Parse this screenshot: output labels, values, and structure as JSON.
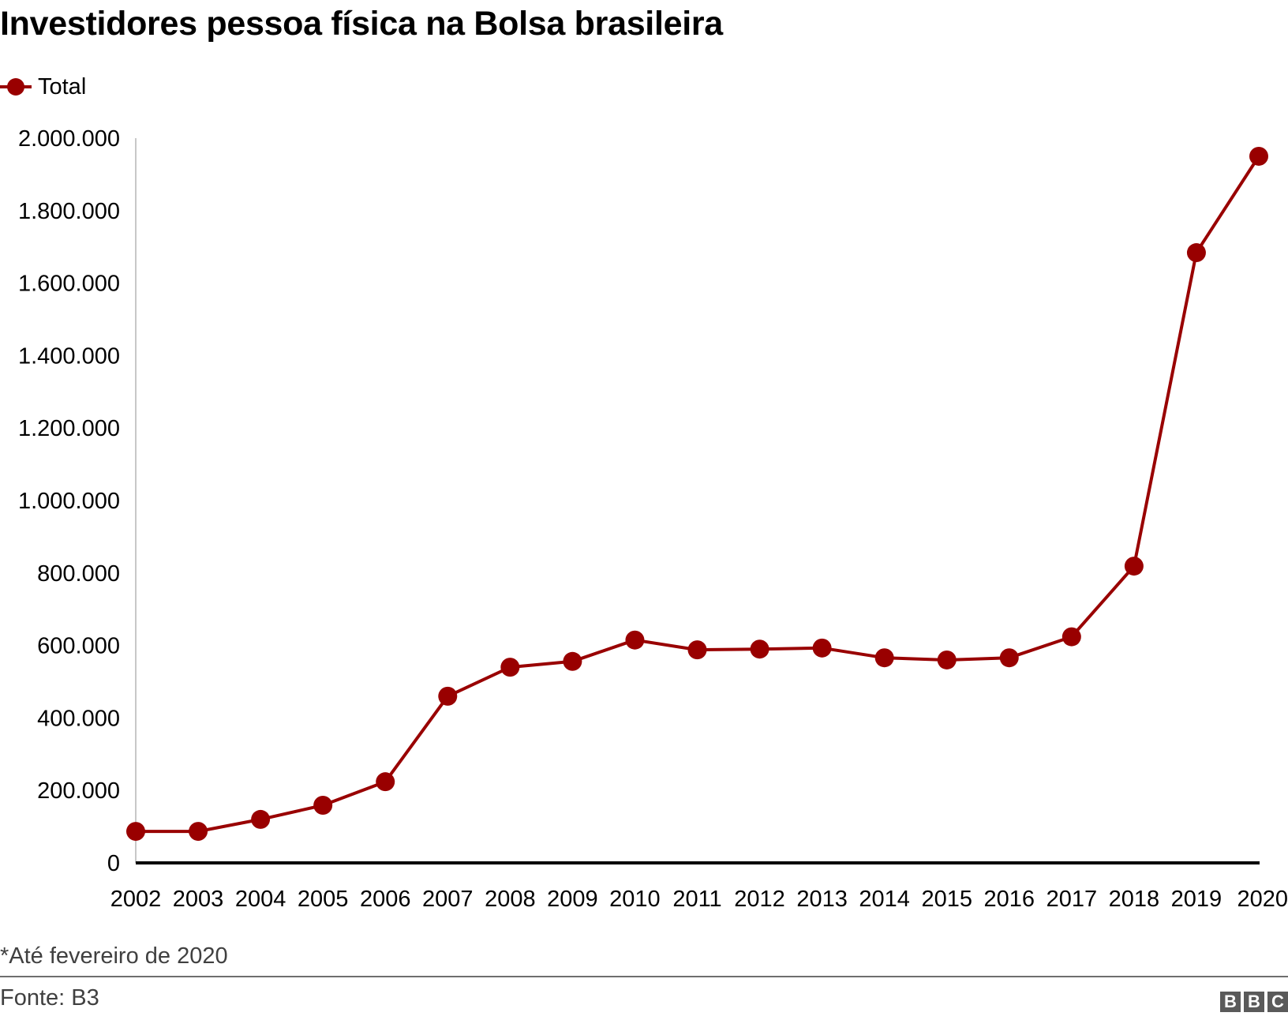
{
  "title": "Investidores pessoa física na Bolsa brasileira",
  "legend": {
    "label": "Total",
    "color": "#990000"
  },
  "note": "*Até fevereiro de 2020",
  "source": "Fonte: B3",
  "logo": [
    "B",
    "B",
    "C"
  ],
  "y_ticks": [
    "0",
    "200.000",
    "400.000",
    "600.000",
    "800.000",
    "1.000.000",
    "1.200.000",
    "1.400.000",
    "1.600.000",
    "1.800.000",
    "2.000.000"
  ],
  "chart_data": {
    "type": "line",
    "title": "Investidores pessoa física na Bolsa brasileira",
    "xlabel": "",
    "ylabel": "",
    "categories": [
      "2002",
      "2003",
      "2004",
      "2005",
      "2006",
      "2007",
      "2008",
      "2009",
      "2010",
      "2011",
      "2012",
      "2013",
      "2014",
      "2015",
      "2016",
      "2017",
      "2018",
      "2019",
      "2020"
    ],
    "series": [
      {
        "name": "Total",
        "color": "#990000",
        "values": [
          87000,
          87000,
          120000,
          159000,
          224000,
          460000,
          540000,
          556000,
          615000,
          588000,
          590000,
          593000,
          566000,
          560000,
          566000,
          624000,
          819000,
          1684000,
          1950000
        ]
      }
    ],
    "ylim": [
      0,
      2000000
    ],
    "yticks": [
      0,
      200000,
      400000,
      600000,
      800000,
      1000000,
      1200000,
      1400000,
      1600000,
      1800000,
      2000000
    ],
    "grid": false,
    "legend_position": "top-left",
    "annotations": [
      "*Até fevereiro de 2020"
    ],
    "source": "Fonte: B3"
  }
}
